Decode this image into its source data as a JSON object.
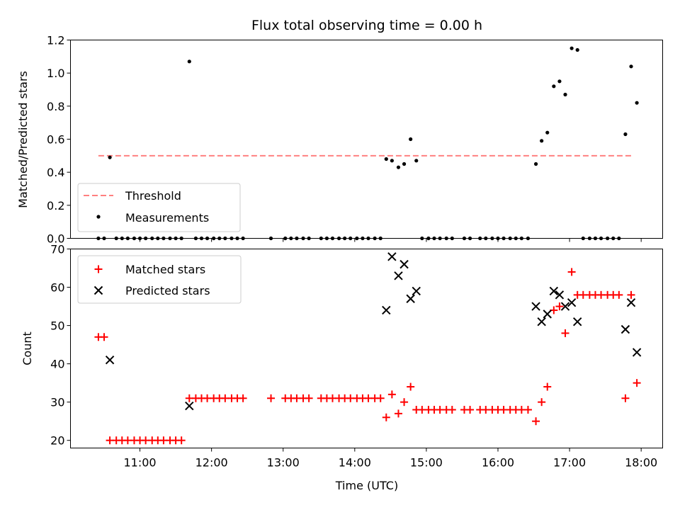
{
  "title": "Flux total observing time = 0.00 h",
  "chart_data": [
    {
      "type": "scatter",
      "ylabel": "Matched/Predicted stars",
      "xlabel": "",
      "ylim": [
        0,
        1.2
      ],
      "yticks": [
        0.0,
        0.2,
        0.4,
        0.6,
        0.8,
        1.0,
        1.2
      ],
      "ytick_labels": [
        "0.0",
        "0.2",
        "0.4",
        "0.6",
        "0.8",
        "1.0",
        "1.2"
      ],
      "legend_position": "bottom-left",
      "threshold": {
        "name": "Threshold",
        "value": 0.5,
        "x_range": [
          10.42,
          17.88
        ],
        "color": "#ff8080"
      },
      "series": [
        {
          "name": "Measurements",
          "color": "#000000",
          "points": [
            [
              10.42,
              0
            ],
            [
              10.5,
              0
            ],
            [
              10.58,
              0.49
            ],
            [
              10.67,
              0
            ],
            [
              10.75,
              0
            ],
            [
              10.83,
              0
            ],
            [
              10.92,
              0
            ],
            [
              11.0,
              0
            ],
            [
              11.08,
              0
            ],
            [
              11.17,
              0
            ],
            [
              11.25,
              0
            ],
            [
              11.33,
              0
            ],
            [
              11.42,
              0
            ],
            [
              11.5,
              0
            ],
            [
              11.58,
              0
            ],
            [
              11.69,
              1.07
            ],
            [
              11.78,
              0
            ],
            [
              11.86,
              0
            ],
            [
              11.94,
              0
            ],
            [
              12.03,
              0
            ],
            [
              12.11,
              0
            ],
            [
              12.19,
              0
            ],
            [
              12.28,
              0
            ],
            [
              12.36,
              0
            ],
            [
              12.44,
              0
            ],
            [
              12.83,
              0
            ],
            [
              13.03,
              0
            ],
            [
              13.11,
              0
            ],
            [
              13.19,
              0
            ],
            [
              13.28,
              0
            ],
            [
              13.36,
              0
            ],
            [
              13.53,
              0
            ],
            [
              13.61,
              0
            ],
            [
              13.69,
              0
            ],
            [
              13.78,
              0
            ],
            [
              13.86,
              0
            ],
            [
              13.94,
              0
            ],
            [
              14.03,
              0
            ],
            [
              14.11,
              0
            ],
            [
              14.19,
              0
            ],
            [
              14.28,
              0
            ],
            [
              14.36,
              0
            ],
            [
              14.44,
              0.48
            ],
            [
              14.52,
              0.47
            ],
            [
              14.61,
              0.43
            ],
            [
              14.69,
              0.45
            ],
            [
              14.78,
              0.6
            ],
            [
              14.86,
              0.47
            ],
            [
              14.94,
              0
            ],
            [
              15.03,
              0
            ],
            [
              15.11,
              0
            ],
            [
              15.19,
              0
            ],
            [
              15.28,
              0
            ],
            [
              15.36,
              0
            ],
            [
              15.53,
              0
            ],
            [
              15.61,
              0
            ],
            [
              15.75,
              0
            ],
            [
              15.83,
              0
            ],
            [
              15.92,
              0
            ],
            [
              16.0,
              0
            ],
            [
              16.08,
              0
            ],
            [
              16.17,
              0
            ],
            [
              16.25,
              0
            ],
            [
              16.33,
              0
            ],
            [
              16.42,
              0
            ],
            [
              16.53,
              0.45
            ],
            [
              16.61,
              0.59
            ],
            [
              16.69,
              0.64
            ],
            [
              16.78,
              0.92
            ],
            [
              16.86,
              0.95
            ],
            [
              16.94,
              0.87
            ],
            [
              17.03,
              1.15
            ],
            [
              17.11,
              1.14
            ],
            [
              17.19,
              0
            ],
            [
              17.28,
              0
            ],
            [
              17.36,
              0
            ],
            [
              17.44,
              0
            ],
            [
              17.53,
              0
            ],
            [
              17.61,
              0
            ],
            [
              17.69,
              0
            ],
            [
              17.78,
              0.63
            ],
            [
              17.86,
              1.04
            ],
            [
              17.94,
              0.82
            ]
          ]
        }
      ]
    },
    {
      "type": "scatter",
      "ylabel": "Count",
      "xlabel": "Time (UTC)",
      "ylim": [
        18,
        70
      ],
      "xlim": [
        10.03,
        18.3
      ],
      "yticks": [
        20,
        30,
        40,
        50,
        60,
        70
      ],
      "ytick_labels": [
        "20",
        "30",
        "40",
        "50",
        "60",
        "70"
      ],
      "xticks": [
        11,
        12,
        13,
        14,
        15,
        16,
        17,
        18
      ],
      "xtick_labels": [
        "11:00",
        "12:00",
        "13:00",
        "14:00",
        "15:00",
        "16:00",
        "17:00",
        "18:00"
      ],
      "legend_position": "top-left",
      "series": [
        {
          "name": "Matched stars",
          "marker": "plus",
          "color": "#ff0000",
          "points": [
            [
              10.42,
              47
            ],
            [
              10.5,
              47
            ],
            [
              10.58,
              20
            ],
            [
              10.67,
              20
            ],
            [
              10.75,
              20
            ],
            [
              10.83,
              20
            ],
            [
              10.92,
              20
            ],
            [
              11.0,
              20
            ],
            [
              11.08,
              20
            ],
            [
              11.17,
              20
            ],
            [
              11.25,
              20
            ],
            [
              11.33,
              20
            ],
            [
              11.42,
              20
            ],
            [
              11.5,
              20
            ],
            [
              11.58,
              20
            ],
            [
              11.69,
              31
            ],
            [
              11.78,
              31
            ],
            [
              11.86,
              31
            ],
            [
              11.94,
              31
            ],
            [
              12.03,
              31
            ],
            [
              12.11,
              31
            ],
            [
              12.19,
              31
            ],
            [
              12.28,
              31
            ],
            [
              12.36,
              31
            ],
            [
              12.44,
              31
            ],
            [
              12.83,
              31
            ],
            [
              13.03,
              31
            ],
            [
              13.11,
              31
            ],
            [
              13.19,
              31
            ],
            [
              13.28,
              31
            ],
            [
              13.36,
              31
            ],
            [
              13.53,
              31
            ],
            [
              13.61,
              31
            ],
            [
              13.69,
              31
            ],
            [
              13.78,
              31
            ],
            [
              13.86,
              31
            ],
            [
              13.94,
              31
            ],
            [
              14.03,
              31
            ],
            [
              14.11,
              31
            ],
            [
              14.19,
              31
            ],
            [
              14.28,
              31
            ],
            [
              14.36,
              31
            ],
            [
              14.44,
              26
            ],
            [
              14.52,
              32
            ],
            [
              14.61,
              27
            ],
            [
              14.69,
              30
            ],
            [
              14.78,
              34
            ],
            [
              14.86,
              28
            ],
            [
              14.94,
              28
            ],
            [
              15.03,
              28
            ],
            [
              15.11,
              28
            ],
            [
              15.19,
              28
            ],
            [
              15.28,
              28
            ],
            [
              15.36,
              28
            ],
            [
              15.53,
              28
            ],
            [
              15.61,
              28
            ],
            [
              15.75,
              28
            ],
            [
              15.83,
              28
            ],
            [
              15.92,
              28
            ],
            [
              16.0,
              28
            ],
            [
              16.08,
              28
            ],
            [
              16.17,
              28
            ],
            [
              16.25,
              28
            ],
            [
              16.33,
              28
            ],
            [
              16.42,
              28
            ],
            [
              16.53,
              25
            ],
            [
              16.61,
              30
            ],
            [
              16.69,
              34
            ],
            [
              16.78,
              54
            ],
            [
              16.86,
              55
            ],
            [
              16.94,
              48
            ],
            [
              17.03,
              64
            ],
            [
              17.11,
              58
            ],
            [
              17.19,
              58
            ],
            [
              17.28,
              58
            ],
            [
              17.36,
              58
            ],
            [
              17.44,
              58
            ],
            [
              17.53,
              58
            ],
            [
              17.61,
              58
            ],
            [
              17.69,
              58
            ],
            [
              17.78,
              31
            ],
            [
              17.86,
              58
            ],
            [
              17.94,
              35
            ]
          ]
        },
        {
          "name": "Predicted stars",
          "marker": "x",
          "color": "#000000",
          "points": [
            [
              10.58,
              41
            ],
            [
              11.69,
              29
            ],
            [
              14.44,
              54
            ],
            [
              14.52,
              68
            ],
            [
              14.61,
              63
            ],
            [
              14.69,
              66
            ],
            [
              14.78,
              57
            ],
            [
              14.86,
              59
            ],
            [
              16.53,
              55
            ],
            [
              16.61,
              51
            ],
            [
              16.69,
              53
            ],
            [
              16.78,
              59
            ],
            [
              16.86,
              58
            ],
            [
              16.94,
              55
            ],
            [
              17.03,
              56
            ],
            [
              17.11,
              51
            ],
            [
              17.78,
              49
            ],
            [
              17.86,
              56
            ],
            [
              17.94,
              43
            ]
          ]
        }
      ]
    }
  ]
}
